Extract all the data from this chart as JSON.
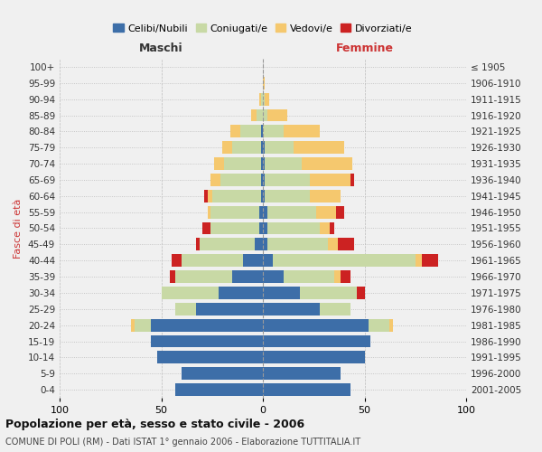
{
  "age_groups": [
    "0-4",
    "5-9",
    "10-14",
    "15-19",
    "20-24",
    "25-29",
    "30-34",
    "35-39",
    "40-44",
    "45-49",
    "50-54",
    "55-59",
    "60-64",
    "65-69",
    "70-74",
    "75-79",
    "80-84",
    "85-89",
    "90-94",
    "95-99",
    "100+"
  ],
  "birth_years": [
    "2001-2005",
    "1996-2000",
    "1991-1995",
    "1986-1990",
    "1981-1985",
    "1976-1980",
    "1971-1975",
    "1966-1970",
    "1961-1965",
    "1956-1960",
    "1951-1955",
    "1946-1950",
    "1941-1945",
    "1936-1940",
    "1931-1935",
    "1926-1930",
    "1921-1925",
    "1916-1920",
    "1911-1915",
    "1906-1910",
    "≤ 1905"
  ],
  "maschi": {
    "celibi": [
      43,
      40,
      52,
      55,
      55,
      33,
      22,
      15,
      10,
      4,
      2,
      2,
      1,
      1,
      1,
      1,
      1,
      0,
      0,
      0,
      0
    ],
    "coniugati": [
      0,
      0,
      0,
      0,
      8,
      10,
      28,
      28,
      30,
      27,
      24,
      24,
      24,
      20,
      18,
      14,
      10,
      3,
      1,
      0,
      0
    ],
    "vedovi": [
      0,
      0,
      0,
      0,
      2,
      0,
      0,
      0,
      0,
      0,
      0,
      1,
      2,
      5,
      5,
      5,
      5,
      3,
      1,
      0,
      0
    ],
    "divorziati": [
      0,
      0,
      0,
      0,
      0,
      0,
      0,
      3,
      5,
      2,
      4,
      0,
      2,
      0,
      0,
      0,
      0,
      0,
      0,
      0,
      0
    ]
  },
  "femmine": {
    "nubili": [
      43,
      38,
      50,
      53,
      52,
      28,
      18,
      10,
      5,
      2,
      2,
      2,
      1,
      1,
      1,
      1,
      0,
      0,
      0,
      0,
      0
    ],
    "coniugate": [
      0,
      0,
      0,
      0,
      10,
      15,
      28,
      25,
      70,
      30,
      26,
      24,
      22,
      22,
      18,
      14,
      10,
      2,
      1,
      0,
      0
    ],
    "vedove": [
      0,
      0,
      0,
      0,
      2,
      0,
      0,
      3,
      3,
      5,
      5,
      10,
      15,
      20,
      25,
      25,
      18,
      10,
      2,
      1,
      0
    ],
    "divorziate": [
      0,
      0,
      0,
      0,
      0,
      0,
      4,
      5,
      8,
      8,
      2,
      4,
      0,
      2,
      0,
      0,
      0,
      0,
      0,
      0,
      0
    ]
  },
  "colors": {
    "celibi": "#3d6ea8",
    "coniugati": "#c8d9a5",
    "vedovi": "#f5c86e",
    "divorziati": "#cc2222"
  },
  "xlim": 100,
  "title": "Popolazione per età, sesso e stato civile - 2006",
  "subtitle": "COMUNE DI POLI (RM) - Dati ISTAT 1° gennaio 2006 - Elaborazione TUTTITALIA.IT",
  "ylabel_left": "Fasce di età",
  "bg_color": "#f0f0f0",
  "label_maschi": "Maschi",
  "label_femmine": "Femmine"
}
